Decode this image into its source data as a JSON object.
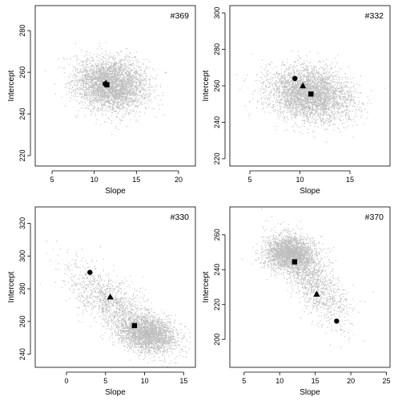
{
  "chart_data": [
    {
      "type": "scatter",
      "label": "#369",
      "xlabel": "Slope",
      "ylabel": "Intercept",
      "xlim": [
        3,
        22
      ],
      "ylim": [
        215,
        292
      ],
      "xticks": [
        5,
        10,
        15,
        20
      ],
      "yticks": [
        220,
        240,
        260,
        280
      ],
      "cloud": [
        {
          "center": [
            12,
            254
          ],
          "sd": [
            2.1,
            6.2
          ],
          "corr": -0.15,
          "weight": 1.0
        }
      ],
      "markers": [
        {
          "shape": "circle",
          "x": 11.3,
          "y": 254.5
        },
        {
          "shape": "triangle",
          "x": 11.4,
          "y": 254.8
        },
        {
          "shape": "square",
          "x": 11.5,
          "y": 254.0
        }
      ]
    },
    {
      "type": "scatter",
      "label": "#332",
      "xlabel": "Slope",
      "ylabel": "Intercept",
      "xlim": [
        3,
        19
      ],
      "ylim": [
        216,
        304
      ],
      "xticks": [
        5,
        10,
        15
      ],
      "yticks": [
        220,
        240,
        260,
        280,
        300
      ],
      "cloud": [
        {
          "center": [
            11,
            255
          ],
          "sd": [
            2.1,
            7.5
          ],
          "corr": -0.2,
          "weight": 1.0
        }
      ],
      "markers": [
        {
          "shape": "circle",
          "x": 9.5,
          "y": 264
        },
        {
          "shape": "triangle",
          "x": 10.3,
          "y": 260
        },
        {
          "shape": "square",
          "x": 11.1,
          "y": 255.5
        }
      ]
    },
    {
      "type": "scatter",
      "label": "#330",
      "xlabel": "Slope",
      "ylabel": "Intercept",
      "xlim": [
        -4,
        16.5
      ],
      "ylim": [
        232,
        330
      ],
      "xticks": [
        0,
        5,
        10,
        15
      ],
      "yticks": [
        240,
        260,
        280,
        300,
        320
      ],
      "cloud": [
        {
          "center": [
            10.5,
            252
          ],
          "sd": [
            1.8,
            5.5
          ],
          "corr": -0.2,
          "weight": 0.6
        },
        {
          "center": [
            6.5,
            268
          ],
          "sd": [
            3.0,
            13
          ],
          "corr": -0.75,
          "weight": 0.4
        }
      ],
      "markers": [
        {
          "shape": "circle",
          "x": 3.0,
          "y": 290
        },
        {
          "shape": "triangle",
          "x": 5.6,
          "y": 275
        },
        {
          "shape": "square",
          "x": 8.7,
          "y": 257.5
        }
      ]
    },
    {
      "type": "scatter",
      "label": "#370",
      "xlabel": "Slope",
      "ylabel": "Intercept",
      "xlim": [
        3,
        25.5
      ],
      "ylim": [
        184,
        276
      ],
      "xticks": [
        5,
        10,
        15,
        20,
        25
      ],
      "yticks": [
        200,
        220,
        240,
        260
      ],
      "cloud": [
        {
          "center": [
            11.5,
            249
          ],
          "sd": [
            1.8,
            5.0
          ],
          "corr": -0.1,
          "weight": 0.65
        },
        {
          "center": [
            14.5,
            235
          ],
          "sd": [
            2.6,
            13
          ],
          "corr": -0.75,
          "weight": 0.35
        }
      ],
      "markers": [
        {
          "shape": "circle",
          "x": 18.0,
          "y": 210.5
        },
        {
          "shape": "triangle",
          "x": 15.2,
          "y": 226
        },
        {
          "shape": "square",
          "x": 12.1,
          "y": 244.5
        }
      ]
    }
  ]
}
